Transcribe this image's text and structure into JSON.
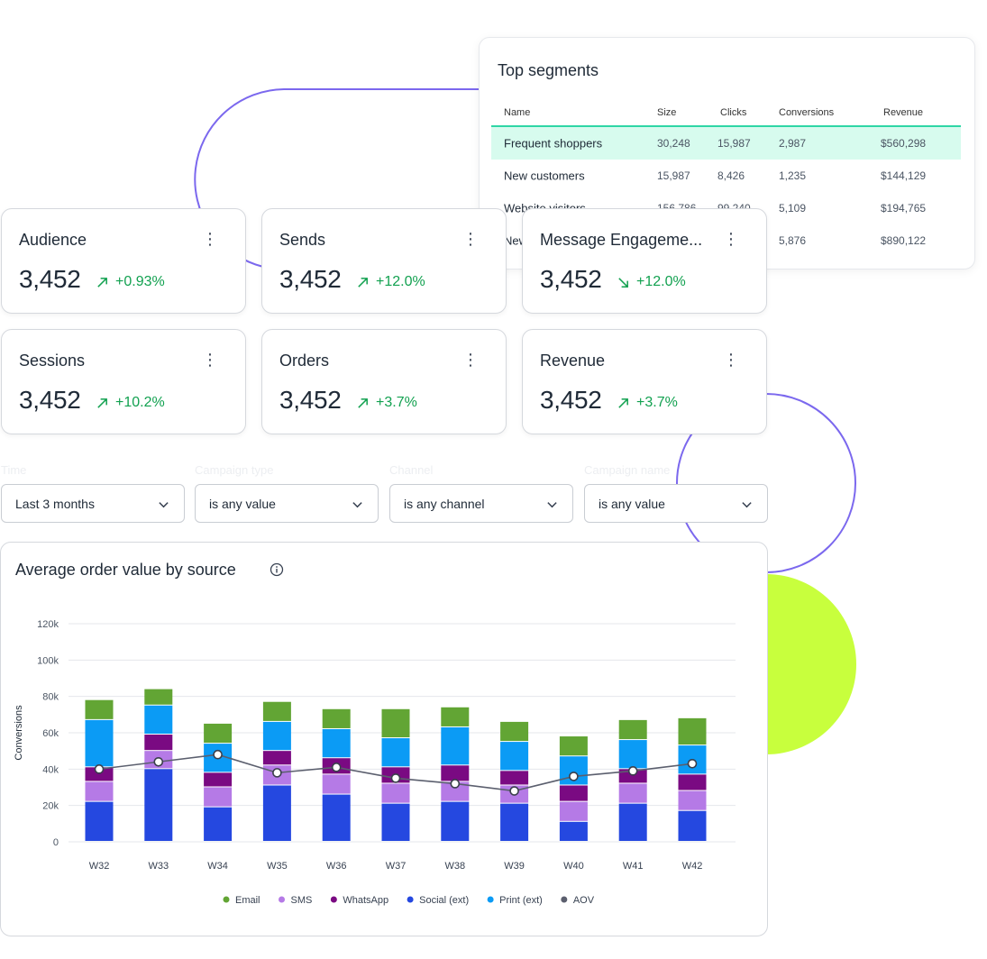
{
  "colors": {
    "ring": "#7b68ee",
    "lime": "#c8ff3d",
    "positive": "#12a150",
    "highlight_row": "#d7fbee",
    "highlight_border": "#2fd6a5"
  },
  "top_segments": {
    "title": "Top segments",
    "columns": [
      "Name",
      "Size",
      "Clicks",
      "Conversions",
      "Revenue"
    ],
    "rows": [
      {
        "name": "Frequent shoppers",
        "size": "30,248",
        "clicks": "15,987",
        "conversions": "2,987",
        "revenue": "$560,298"
      },
      {
        "name": "New customers",
        "size": "15,987",
        "clicks": "8,426",
        "conversions": "1,235",
        "revenue": "$144,129"
      },
      {
        "name": "Website visitors",
        "size": "156,786",
        "clicks": "99,240",
        "conversions": "5,109",
        "revenue": "$194,765"
      },
      {
        "name": "New",
        "size": "",
        "clicks": "",
        "conversions": "5,876",
        "revenue": "$890,122"
      }
    ]
  },
  "kpis": [
    {
      "title": "Audience",
      "value": "3,452",
      "trend": "+0.93%",
      "direction": "up",
      "more_icon": "more-vertical-icon"
    },
    {
      "title": "Sends",
      "value": "3,452",
      "trend": "+12.0%",
      "direction": "up",
      "more_icon": "more-vertical-icon"
    },
    {
      "title": "Message Engageme...",
      "value": "3,452",
      "trend": "+12.0%",
      "direction": "down",
      "more_icon": "more-vertical-icon"
    },
    {
      "title": "Sessions",
      "value": "3,452",
      "trend": "+10.2%",
      "direction": "up",
      "more_icon": "more-vertical-icon"
    },
    {
      "title": "Orders",
      "value": "3,452",
      "trend": "+3.7%",
      "direction": "up",
      "more_icon": "more-vertical-icon"
    },
    {
      "title": "Revenue",
      "value": "3,452",
      "trend": "+3.7%",
      "direction": "up",
      "more_icon": "more-vertical-icon"
    }
  ],
  "filters": [
    {
      "label": "Time",
      "value": "Last 3 months"
    },
    {
      "label": "Campaign type",
      "value": "is any value"
    },
    {
      "label": "Channel",
      "value": "is any channel"
    },
    {
      "label": "Campaign name",
      "value": "is any value"
    }
  ],
  "chart": {
    "title": "Average order value by source",
    "info_icon": "info-icon"
  },
  "chart_data": {
    "type": "bar",
    "stacked": true,
    "title": "Average order value by source",
    "xlabel": "",
    "ylabel": "Conversions",
    "ylim": [
      0,
      120000
    ],
    "yticks": [
      0,
      20000,
      40000,
      60000,
      80000,
      100000,
      120000
    ],
    "ytick_labels": [
      "0",
      "20k",
      "40k",
      "60k",
      "80k",
      "100k",
      "120k"
    ],
    "grid": true,
    "legend": "bottom",
    "categories": [
      "W32",
      "W33",
      "W34",
      "W35",
      "W36",
      "W37",
      "W38",
      "W39",
      "W40",
      "W41",
      "W42"
    ],
    "series": [
      {
        "name": "Social (ext)",
        "color": "#2548e0",
        "values": [
          22000,
          40000,
          19000,
          31000,
          26000,
          21000,
          22000,
          21000,
          11000,
          21000,
          17000
        ]
      },
      {
        "name": "SMS",
        "color": "#b57ae6",
        "values": [
          11000,
          10000,
          11000,
          11000,
          11000,
          11000,
          11000,
          10000,
          11000,
          11000,
          11000
        ]
      },
      {
        "name": "WhatsApp",
        "color": "#7a0a82",
        "values": [
          8000,
          9000,
          8000,
          8000,
          9000,
          9000,
          9000,
          8000,
          9000,
          8000,
          9000
        ]
      },
      {
        "name": "Print (ext)",
        "color": "#0b9bf5",
        "values": [
          26000,
          16000,
          16000,
          16000,
          16000,
          16000,
          21000,
          16000,
          16000,
          16000,
          16000
        ]
      },
      {
        "name": "Email",
        "color": "#62a534",
        "values": [
          11000,
          9000,
          11000,
          11000,
          11000,
          16000,
          11000,
          11000,
          11000,
          11000,
          15000
        ]
      }
    ],
    "legend_order": [
      "Email",
      "SMS",
      "WhatsApp",
      "Social (ext)",
      "Print (ext)",
      "AOV"
    ],
    "line": {
      "name": "AOV",
      "color": "#5b5f6e",
      "values": [
        40000,
        44000,
        48000,
        38000,
        41000,
        35000,
        32000,
        28000,
        36000,
        39000,
        43000
      ]
    }
  }
}
